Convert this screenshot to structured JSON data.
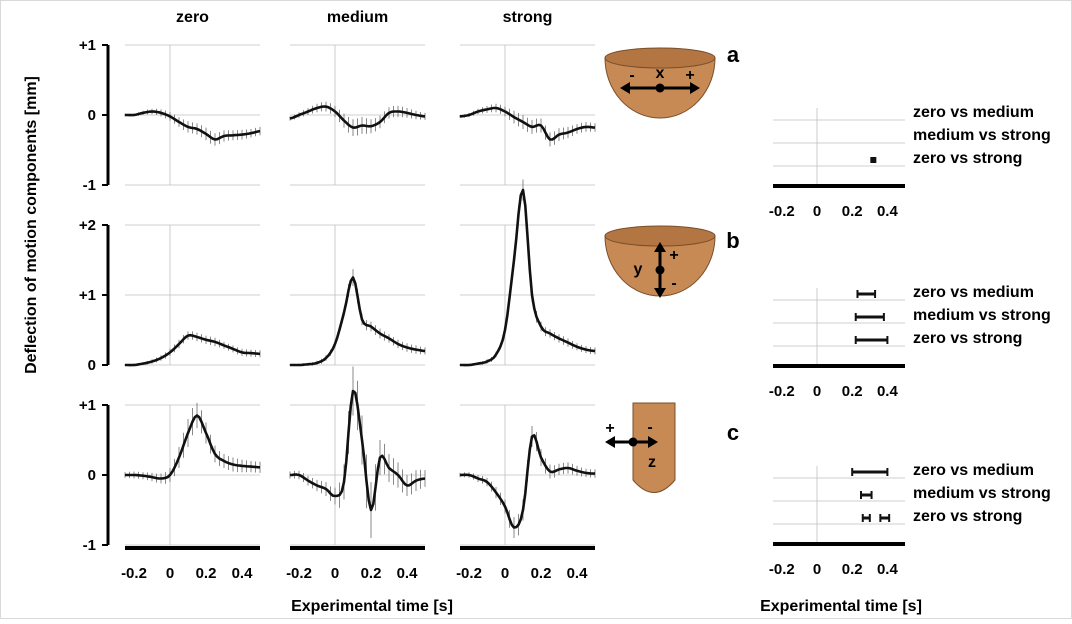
{
  "ylabel": "Deflection of motion components  [mm]",
  "xlabel": "Experimental time [s]",
  "xlabel_right": "Experimental time [s]",
  "colors": {
    "line": "#111111",
    "axis": "#000000",
    "grid": "#bfbfbf",
    "errorbar": "#6b6b6b",
    "icon_fill": "#c88a55",
    "icon_edge": "#7a4f2a"
  },
  "conditions": [
    "zero",
    "medium",
    "strong"
  ],
  "x_ticks": [
    "-0.2",
    "0",
    "0.2",
    "0.4"
  ],
  "rows": [
    {
      "letter": "a",
      "y_ticks": [
        "+1",
        "0",
        "-1"
      ],
      "y_tick_values": [
        1,
        0,
        -1
      ],
      "ylim": [
        -1,
        1
      ],
      "icon": {
        "type": "x",
        "axis_label": "x",
        "minus": "-",
        "plus": "+"
      },
      "comparisons": [
        "zero vs medium",
        "medium vs strong",
        "zero vs strong"
      ]
    },
    {
      "letter": "b",
      "y_ticks": [
        "+2",
        "+1",
        "0"
      ],
      "y_tick_values": [
        2,
        1,
        0
      ],
      "ylim": [
        0,
        2
      ],
      "icon": {
        "type": "y",
        "axis_label": "y",
        "minus": "-",
        "plus": "+"
      },
      "comparisons": [
        "zero vs medium",
        "medium vs strong",
        "zero vs strong"
      ]
    },
    {
      "letter": "c",
      "y_ticks": [
        "+1",
        "0",
        "-1"
      ],
      "y_tick_values": [
        1,
        0,
        -1
      ],
      "ylim": [
        -1,
        1
      ],
      "icon": {
        "type": "z",
        "axis_label": "z",
        "minus": "-",
        "plus": "+"
      },
      "comparisons": [
        "zero vs medium",
        "medium vs strong",
        "zero vs strong"
      ]
    }
  ],
  "chart_data": {
    "type": "line",
    "xlim": [
      -0.25,
      0.5
    ],
    "grid": true,
    "x_knots": [
      -0.25,
      -0.2,
      -0.15,
      -0.1,
      -0.05,
      0,
      0.05,
      0.1,
      0.15,
      0.2,
      0.25,
      0.3,
      0.35,
      0.4,
      0.45,
      0.5
    ],
    "panels": [
      {
        "row": "a",
        "condition": "zero",
        "y": [
          0,
          0,
          0.03,
          0.05,
          0.03,
          -0.02,
          -0.1,
          -0.17,
          -0.2,
          -0.27,
          -0.35,
          -0.3,
          -0.29,
          -0.28,
          -0.26,
          -0.23
        ],
        "error": [
          0.02,
          0.02,
          0.03,
          0.04,
          0.05,
          0.06,
          0.07,
          0.08,
          0.08,
          0.09,
          0.09,
          0.08,
          0.07,
          0.07,
          0.06,
          0.06
        ]
      },
      {
        "row": "a",
        "condition": "medium",
        "y": [
          -0.05,
          0,
          0.05,
          0.1,
          0.12,
          0.05,
          -0.08,
          -0.18,
          -0.15,
          -0.16,
          -0.1,
          0.03,
          0.05,
          0.03,
          0,
          -0.02
        ],
        "error": [
          0.03,
          0.04,
          0.05,
          0.06,
          0.07,
          0.08,
          0.1,
          0.12,
          0.12,
          0.1,
          0.09,
          0.08,
          0.08,
          0.07,
          0.06,
          0.05
        ]
      },
      {
        "row": "a",
        "condition": "strong",
        "y": [
          -0.02,
          0,
          0.05,
          0.08,
          0.1,
          0.05,
          -0.03,
          -0.1,
          -0.17,
          -0.15,
          -0.35,
          -0.28,
          -0.25,
          -0.2,
          -0.17,
          -0.18
        ],
        "error": [
          0.02,
          0.03,
          0.04,
          0.05,
          0.06,
          0.07,
          0.09,
          0.1,
          0.1,
          0.1,
          0.1,
          0.09,
          0.08,
          0.07,
          0.07,
          0.06
        ]
      },
      {
        "row": "b",
        "condition": "zero",
        "y": [
          0,
          0,
          0.02,
          0.05,
          0.1,
          0.18,
          0.3,
          0.42,
          0.4,
          0.36,
          0.33,
          0.28,
          0.23,
          0.18,
          0.17,
          0.16
        ],
        "error": [
          0.01,
          0.02,
          0.02,
          0.03,
          0.04,
          0.05,
          0.06,
          0.06,
          0.06,
          0.06,
          0.06,
          0.05,
          0.05,
          0.05,
          0.05,
          0.05
        ]
      },
      {
        "row": "b",
        "condition": "medium",
        "y": [
          0,
          0,
          0.01,
          0.03,
          0.1,
          0.3,
          0.75,
          1.25,
          0.65,
          0.55,
          0.45,
          0.38,
          0.3,
          0.25,
          0.22,
          0.2
        ],
        "error": [
          0.01,
          0.02,
          0.02,
          0.03,
          0.04,
          0.05,
          0.06,
          0.12,
          0.08,
          0.07,
          0.07,
          0.06,
          0.06,
          0.06,
          0.06,
          0.05
        ]
      },
      {
        "row": "b",
        "condition": "strong",
        "y": [
          0,
          0,
          0.02,
          0.05,
          0.15,
          0.5,
          1.5,
          2.5,
          1.0,
          0.55,
          0.45,
          0.38,
          0.32,
          0.26,
          0.22,
          0.2
        ],
        "error": [
          0.01,
          0.02,
          0.02,
          0.03,
          0.04,
          0.05,
          0.08,
          0.15,
          0.1,
          0.07,
          0.06,
          0.06,
          0.06,
          0.05,
          0.05,
          0.05
        ]
      },
      {
        "row": "c",
        "condition": "zero",
        "y": [
          0,
          0,
          -0.01,
          -0.03,
          -0.05,
          0.0,
          0.25,
          0.6,
          0.85,
          0.6,
          0.3,
          0.2,
          0.15,
          0.13,
          0.12,
          0.11
        ],
        "error": [
          0.04,
          0.05,
          0.05,
          0.06,
          0.07,
          0.1,
          0.15,
          0.2,
          0.18,
          0.15,
          0.12,
          0.1,
          0.1,
          0.09,
          0.08,
          0.08
        ]
      },
      {
        "row": "c",
        "condition": "medium",
        "y": [
          0,
          0,
          -0.08,
          -0.15,
          -0.2,
          -0.3,
          -0.1,
          1.2,
          0.5,
          -0.5,
          0.25,
          0.1,
          0.0,
          -0.15,
          -0.08,
          -0.05
        ],
        "error": [
          0.05,
          0.06,
          0.07,
          0.08,
          0.1,
          0.12,
          0.25,
          0.35,
          0.35,
          0.4,
          0.25,
          0.2,
          0.18,
          0.15,
          0.15,
          0.12
        ]
      },
      {
        "row": "c",
        "condition": "strong",
        "y": [
          0,
          0,
          -0.05,
          -0.1,
          -0.25,
          -0.45,
          -0.75,
          -0.5,
          0.55,
          0.25,
          0.05,
          0.08,
          0.1,
          0.06,
          0.03,
          0.02
        ],
        "error": [
          0.03,
          0.04,
          0.05,
          0.06,
          0.08,
          0.1,
          0.15,
          0.15,
          0.15,
          0.12,
          0.1,
          0.08,
          0.08,
          0.07,
          0.06,
          0.06
        ]
      }
    ],
    "significance": {
      "xlim": [
        -0.25,
        0.5
      ],
      "ticks": [
        "-0.2",
        "0",
        "0.2",
        "0.4"
      ],
      "panels": [
        {
          "row": "a",
          "intervals": [
            [],
            [],
            [
              [
                0.32,
                0.32
              ]
            ]
          ]
        },
        {
          "row": "b",
          "intervals": [
            [
              [
                0.23,
                0.33
              ]
            ],
            [
              [
                0.22,
                0.38
              ]
            ],
            [
              [
                0.22,
                0.4
              ]
            ]
          ]
        },
        {
          "row": "c",
          "intervals": [
            [
              [
                0.2,
                0.4
              ]
            ],
            [
              [
                0.25,
                0.31
              ]
            ],
            [
              [
                0.26,
                0.3
              ],
              [
                0.36,
                0.41
              ]
            ]
          ]
        }
      ]
    }
  }
}
